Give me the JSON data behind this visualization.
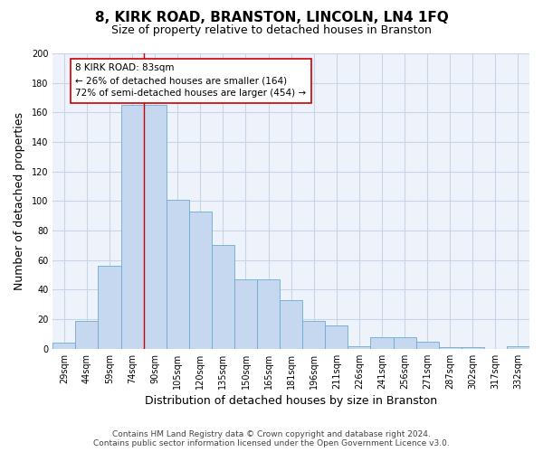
{
  "title": "8, KIRK ROAD, BRANSTON, LINCOLN, LN4 1FQ",
  "subtitle": "Size of property relative to detached houses in Branston",
  "xlabel": "Distribution of detached houses by size in Branston",
  "ylabel": "Number of detached properties",
  "categories": [
    "29sqm",
    "44sqm",
    "59sqm",
    "74sqm",
    "90sqm",
    "105sqm",
    "120sqm",
    "135sqm",
    "150sqm",
    "165sqm",
    "181sqm",
    "196sqm",
    "211sqm",
    "226sqm",
    "241sqm",
    "256sqm",
    "271sqm",
    "287sqm",
    "302sqm",
    "317sqm",
    "332sqm"
  ],
  "values": [
    4,
    19,
    56,
    165,
    165,
    101,
    93,
    70,
    47,
    47,
    33,
    19,
    16,
    2,
    8,
    8,
    5,
    1,
    1,
    0,
    2
  ],
  "bar_color": "#c5d8f0",
  "bar_edge_color": "#6aaad4",
  "ylim": [
    0,
    200
  ],
  "yticks": [
    0,
    20,
    40,
    60,
    80,
    100,
    120,
    140,
    160,
    180,
    200
  ],
  "property_label": "8 KIRK ROAD: 83sqm",
  "annotation_line1": "← 26% of detached houses are smaller (164)",
  "annotation_line2": "72% of semi-detached houses are larger (454) →",
  "vline_x": 3.5,
  "background_color": "#eef2fb",
  "grid_color": "#c8d4e8",
  "footer_line1": "Contains HM Land Registry data © Crown copyright and database right 2024.",
  "footer_line2": "Contains public sector information licensed under the Open Government Licence v3.0.",
  "title_fontsize": 11,
  "subtitle_fontsize": 9,
  "axis_label_fontsize": 9,
  "tick_fontsize": 7,
  "annotation_fontsize": 7.5,
  "footer_fontsize": 6.5
}
